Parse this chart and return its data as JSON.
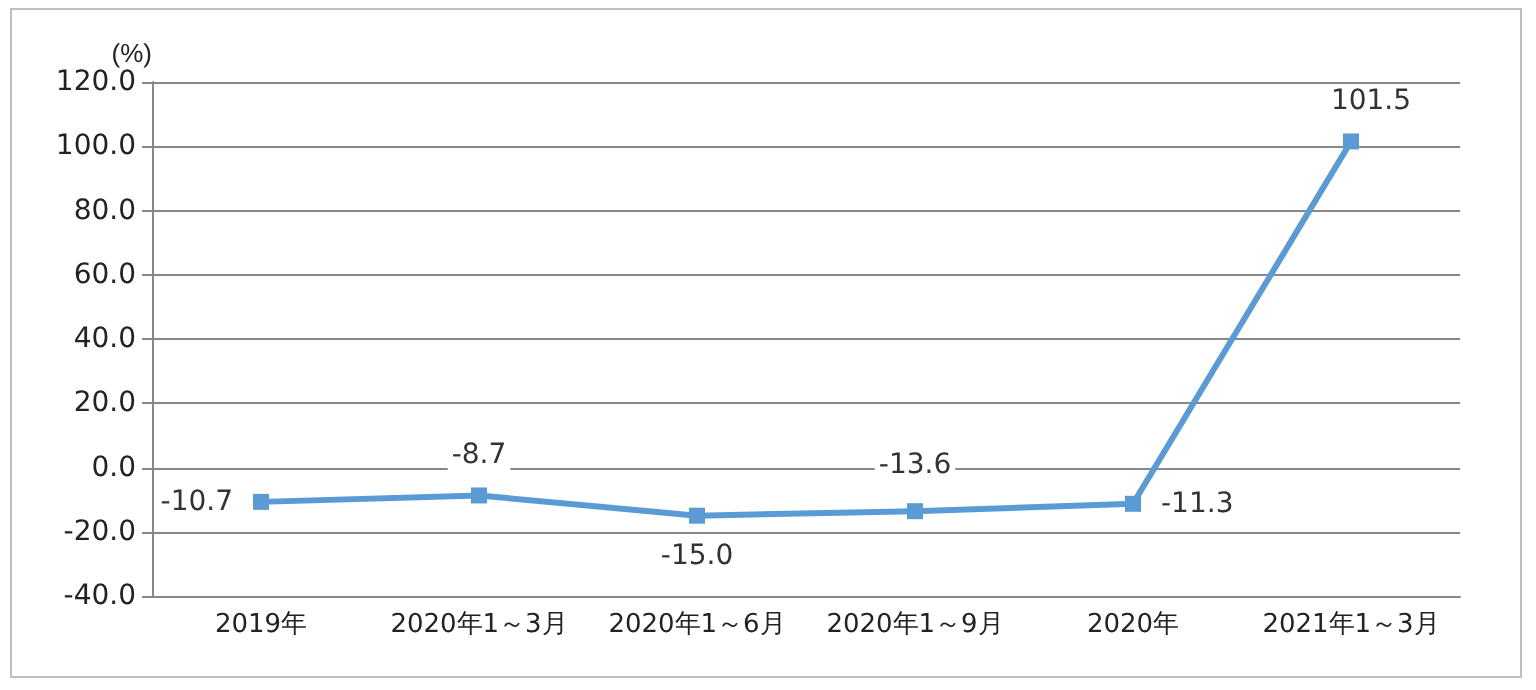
{
  "chart_data": {
    "type": "line",
    "ylabel": "(%)",
    "categories": [
      "2019年",
      "2020年1～3月",
      "2020年1～6月",
      "2020年1～9月",
      "2020年",
      "2021年1～3月"
    ],
    "series": [
      {
        "color": "#5b9bd5",
        "values": [
          -10.7,
          -8.7,
          -15.0,
          -13.6,
          -11.3,
          101.5
        ],
        "value_labels": [
          "-10.7",
          "-8.7",
          "-15.0",
          "-13.6",
          "-11.3",
          "101.5"
        ]
      }
    ],
    "ylim": [
      -40,
      120
    ],
    "yticks": [
      {
        "value": -40,
        "label": "-40.0"
      },
      {
        "value": -20,
        "label": "-20.0"
      },
      {
        "value": 0,
        "label": "0.0"
      },
      {
        "value": 20,
        "label": "20.0"
      },
      {
        "value": 40,
        "label": "40.0"
      },
      {
        "value": 60,
        "label": "60.0"
      },
      {
        "value": 80,
        "label": "80.0"
      },
      {
        "value": 100,
        "label": "100.0"
      },
      {
        "value": 120,
        "label": "120.0"
      }
    ],
    "grid": "y",
    "marker": "square",
    "line_style": "solid"
  }
}
